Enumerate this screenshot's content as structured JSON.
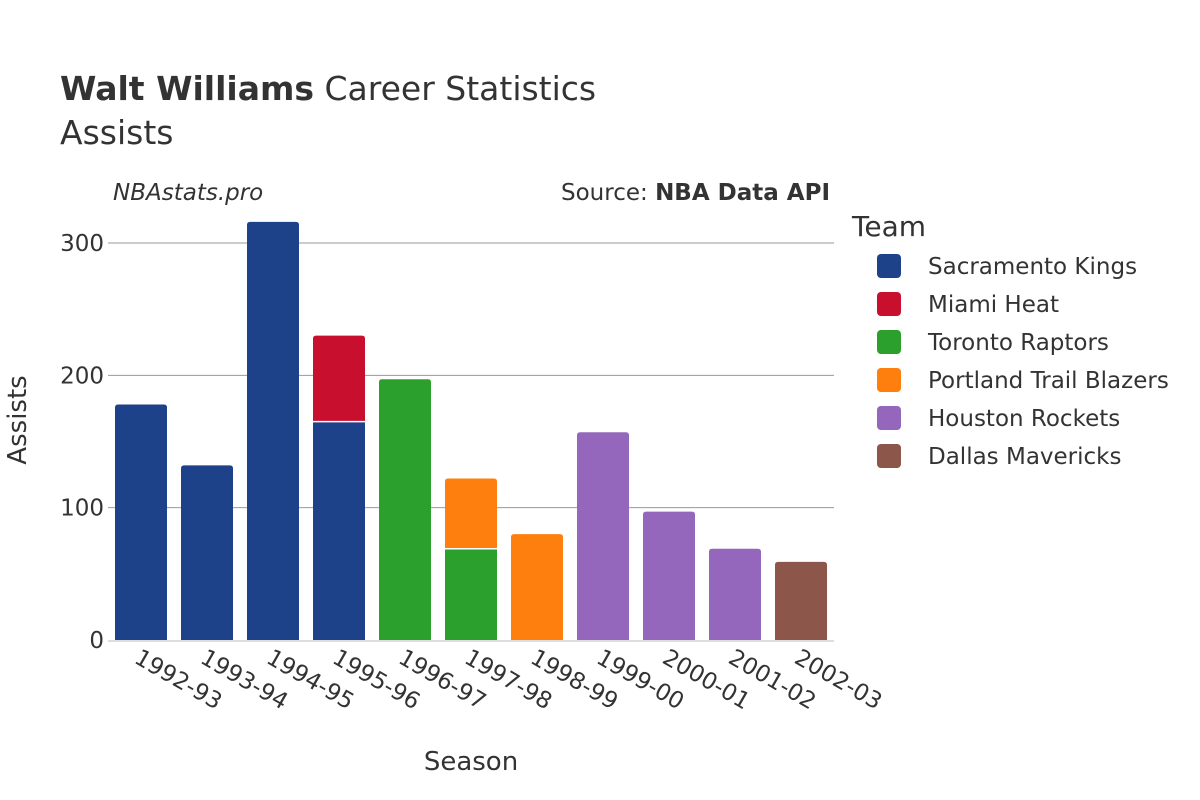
{
  "header": {
    "player_name": "Walt Williams",
    "title_suffix": " Career Statistics",
    "subtitle": "Assists",
    "credit": "NBAstats.pro",
    "source_prefix": "Source: ",
    "source_name": "NBA Data API"
  },
  "legend": {
    "title": "Team",
    "items": [
      {
        "name": "Sacramento Kings",
        "color": "#1d428a"
      },
      {
        "name": "Miami Heat",
        "color": "#c8102e"
      },
      {
        "name": "Toronto Raptors",
        "color": "#2ca02c"
      },
      {
        "name": "Portland Trail Blazers",
        "color": "#ff7f0e"
      },
      {
        "name": "Houston Rockets",
        "color": "#9467bd"
      },
      {
        "name": "Dallas Mavericks",
        "color": "#8c564b"
      }
    ]
  },
  "chart_data": {
    "type": "bar",
    "stacked": true,
    "title": "Walt Williams Career Statistics",
    "subtitle": "Assists",
    "xlabel": "Season",
    "ylabel": "Assists",
    "ylim": [
      0,
      325
    ],
    "yticks": [
      0,
      100,
      200,
      300
    ],
    "grid": true,
    "legend_position": "right",
    "categories": [
      "1992-93",
      "1993-94",
      "1994-95",
      "1995-96",
      "1996-97",
      "1997-98",
      "1998-99",
      "1999-00",
      "2000-01",
      "2001-02",
      "2002-03"
    ],
    "series": [
      {
        "name": "Sacramento Kings",
        "color": "#1d428a",
        "values": [
          178,
          132,
          316,
          165,
          0,
          0,
          0,
          0,
          0,
          0,
          0
        ]
      },
      {
        "name": "Miami Heat",
        "color": "#c8102e",
        "values": [
          0,
          0,
          0,
          65,
          0,
          0,
          0,
          0,
          0,
          0,
          0
        ]
      },
      {
        "name": "Toronto Raptors",
        "color": "#2ca02c",
        "values": [
          0,
          0,
          0,
          0,
          197,
          69,
          0,
          0,
          0,
          0,
          0
        ]
      },
      {
        "name": "Portland Trail Blazers",
        "color": "#ff7f0e",
        "values": [
          0,
          0,
          0,
          0,
          0,
          53,
          80,
          0,
          0,
          0,
          0
        ]
      },
      {
        "name": "Houston Rockets",
        "color": "#9467bd",
        "values": [
          0,
          0,
          0,
          0,
          0,
          0,
          0,
          157,
          97,
          69,
          0
        ]
      },
      {
        "name": "Dallas Mavericks",
        "color": "#8c564b",
        "values": [
          0,
          0,
          0,
          0,
          0,
          0,
          0,
          0,
          0,
          0,
          59
        ]
      }
    ]
  }
}
